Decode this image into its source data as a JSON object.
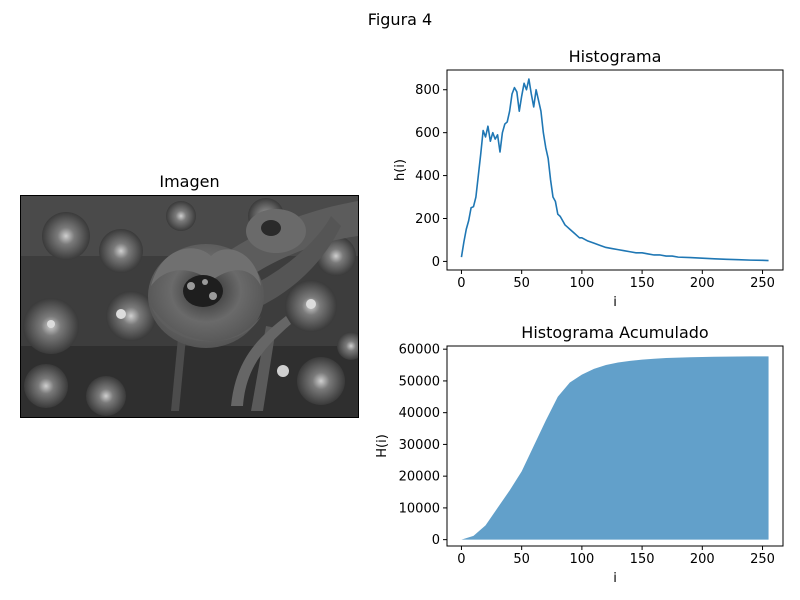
{
  "figure": {
    "title": "Figura 4"
  },
  "image_panel": {
    "title": "Imagen"
  },
  "chart_data": [
    {
      "type": "line",
      "title": "Histograma",
      "xlabel": "i",
      "ylabel": "h(i)",
      "xlim": [
        -12,
        267
      ],
      "ylim": [
        -40,
        892
      ],
      "xticks": [
        0,
        50,
        100,
        150,
        200,
        250
      ],
      "yticks": [
        0,
        200,
        400,
        600,
        800
      ],
      "color": "#1f77b4",
      "x": [
        0,
        2,
        4,
        6,
        8,
        10,
        12,
        14,
        16,
        18,
        20,
        22,
        24,
        26,
        28,
        30,
        32,
        34,
        36,
        38,
        40,
        42,
        44,
        46,
        48,
        50,
        52,
        54,
        56,
        58,
        60,
        62,
        64,
        66,
        68,
        70,
        72,
        74,
        76,
        78,
        80,
        82,
        84,
        86,
        88,
        90,
        92,
        94,
        96,
        98,
        100,
        105,
        110,
        115,
        120,
        125,
        130,
        135,
        140,
        145,
        150,
        155,
        160,
        165,
        170,
        175,
        180,
        190,
        200,
        210,
        220,
        230,
        240,
        250,
        255
      ],
      "y": [
        20,
        90,
        150,
        190,
        250,
        255,
        300,
        400,
        500,
        610,
        580,
        630,
        560,
        600,
        570,
        590,
        510,
        600,
        640,
        650,
        700,
        780,
        810,
        790,
        700,
        770,
        830,
        800,
        850,
        780,
        720,
        800,
        750,
        700,
        600,
        530,
        480,
        380,
        300,
        280,
        220,
        210,
        190,
        170,
        160,
        150,
        140,
        130,
        120,
        110,
        110,
        95,
        85,
        75,
        65,
        60,
        55,
        50,
        45,
        40,
        40,
        35,
        30,
        30,
        25,
        25,
        20,
        18,
        15,
        12,
        10,
        8,
        6,
        5,
        4
      ]
    },
    {
      "type": "area",
      "title": "Histograma Acumulado",
      "xlabel": "i",
      "ylabel": "H(i)",
      "xlim": [
        -12,
        267
      ],
      "ylim": [
        -2000,
        61000
      ],
      "xticks": [
        0,
        50,
        100,
        150,
        200,
        250
      ],
      "yticks": [
        0,
        10000,
        20000,
        30000,
        40000,
        50000,
        60000
      ],
      "color": "#1f77b4",
      "x": [
        0,
        10,
        20,
        30,
        40,
        50,
        60,
        70,
        80,
        90,
        100,
        110,
        120,
        130,
        140,
        150,
        160,
        170,
        180,
        190,
        200,
        210,
        220,
        230,
        240,
        250,
        255
      ],
      "y": [
        0,
        1200,
        4500,
        10000,
        15500,
        21500,
        29500,
        37500,
        45000,
        49500,
        52000,
        53800,
        55000,
        55800,
        56300,
        56700,
        57000,
        57200,
        57350,
        57450,
        57550,
        57600,
        57650,
        57700,
        57720,
        57740,
        57750
      ]
    }
  ]
}
